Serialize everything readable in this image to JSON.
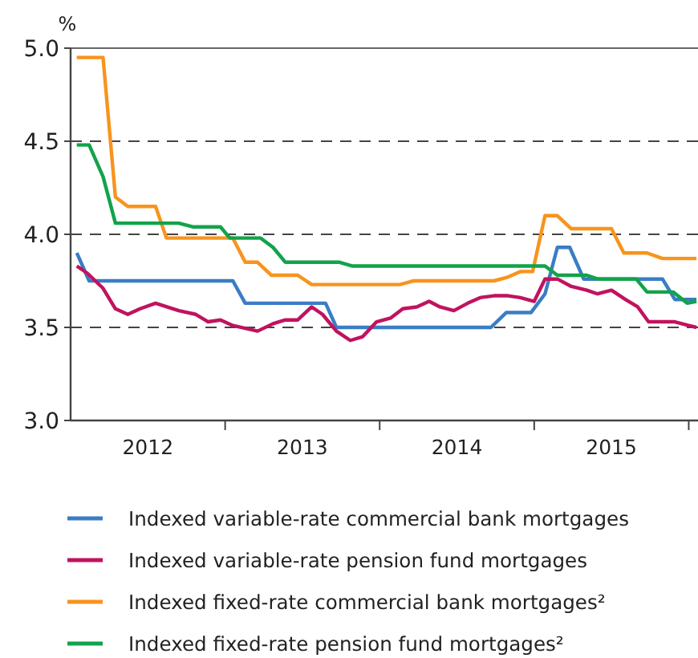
{
  "chart_data": {
    "type": "line",
    "ylabel": "%",
    "xlim": [
      2012,
      2016.06
    ],
    "ylim": [
      3,
      5
    ],
    "yticks": [
      {
        "value": 3,
        "label": "3.0"
      },
      {
        "value": 3.5,
        "label": "3.5"
      },
      {
        "value": 4,
        "label": "4.0"
      },
      {
        "value": 4.5,
        "label": "4.5"
      },
      {
        "value": 5,
        "label": "5.0"
      }
    ],
    "xticks": [
      {
        "value": 2013,
        "label": null
      },
      {
        "value": 2014,
        "label": null
      },
      {
        "value": 2015,
        "label": null
      },
      {
        "value": 2016,
        "label": null
      },
      {
        "value": 2012.5,
        "label": "2012"
      },
      {
        "value": 2013.5,
        "label": "2013"
      },
      {
        "value": 2014.5,
        "label": "2014"
      },
      {
        "value": 2015.5,
        "label": "2015"
      }
    ],
    "grid": "y",
    "legend": "bottom",
    "marker": "none",
    "line_style": "solid",
    "series": [
      {
        "name": "Indexed variable-rate commercial bank mortgages",
        "color": "#3a7dc4",
        "x": [
          2012.04,
          2012.12,
          2013.05,
          2013.13,
          2013.65,
          2013.72,
          2014.72,
          2014.82,
          2014.98,
          2015.07,
          2015.15,
          2015.23,
          2015.32,
          2015.83,
          2015.91,
          2016.05
        ],
        "values": [
          3.9,
          3.75,
          3.75,
          3.63,
          3.63,
          3.5,
          3.5,
          3.58,
          3.58,
          3.68,
          3.93,
          3.93,
          3.76,
          3.76,
          3.65,
          3.65
        ]
      },
      {
        "name": "Indexed variable-rate pension fund mortgages",
        "color": "#c0135f",
        "x": [
          2012.04,
          2012.11,
          2012.21,
          2012.29,
          2012.37,
          2012.45,
          2012.55,
          2012.7,
          2012.81,
          2012.89,
          2012.97,
          2013.05,
          2013.21,
          2013.31,
          2013.39,
          2013.47,
          2013.56,
          2013.63,
          2013.72,
          2013.81,
          2013.89,
          2013.98,
          2014.07,
          2014.15,
          2014.24,
          2014.32,
          2014.39,
          2014.48,
          2014.57,
          2014.65,
          2014.74,
          2014.83,
          2014.91,
          2015,
          2015.07,
          2015.15,
          2015.24,
          2015.34,
          2015.41,
          2015.5,
          2015.59,
          2015.67,
          2015.74,
          2015.83,
          2015.91,
          2016,
          2016.05
        ],
        "values": [
          3.83,
          3.79,
          3.71,
          3.6,
          3.57,
          3.6,
          3.63,
          3.59,
          3.57,
          3.53,
          3.54,
          3.51,
          3.48,
          3.52,
          3.54,
          3.54,
          3.61,
          3.57,
          3.48,
          3.43,
          3.45,
          3.53,
          3.55,
          3.6,
          3.61,
          3.64,
          3.61,
          3.59,
          3.63,
          3.66,
          3.67,
          3.67,
          3.66,
          3.64,
          3.76,
          3.76,
          3.72,
          3.7,
          3.68,
          3.7,
          3.65,
          3.61,
          3.53,
          3.53,
          3.53,
          3.51,
          3.5
        ]
      },
      {
        "name": "Indexed fixed-rate commercial bank mortgages²",
        "color": "#f7941d",
        "x": [
          2012.04,
          2012.21,
          2012.29,
          2012.37,
          2012.55,
          2012.62,
          2013.05,
          2013.13,
          2013.21,
          2013.3,
          2013.47,
          2013.56,
          2013.82,
          2014.13,
          2014.22,
          2014.74,
          2014.83,
          2014.91,
          2014.99,
          2015.07,
          2015.15,
          2015.24,
          2015.5,
          2015.58,
          2015.73,
          2015.83,
          2016.05
        ],
        "values": [
          4.95,
          4.95,
          4.2,
          4.15,
          4.15,
          3.98,
          3.98,
          3.85,
          3.85,
          3.78,
          3.78,
          3.73,
          3.73,
          3.73,
          3.75,
          3.75,
          3.77,
          3.8,
          3.8,
          4.1,
          4.1,
          4.03,
          4.03,
          3.9,
          3.9,
          3.87,
          3.87
        ]
      },
      {
        "name": "Indexed fixed-rate pension fund mortgages²",
        "color": "#12a34a",
        "x": [
          2012.04,
          2012.12,
          2012.21,
          2012.29,
          2012.7,
          2012.79,
          2012.97,
          2013.03,
          2013.23,
          2013.31,
          2013.39,
          2013.74,
          2013.82,
          2015.07,
          2015.15,
          2015.34,
          2015.41,
          2015.66,
          2015.73,
          2015.9,
          2015.99,
          2016.05
        ],
        "values": [
          4.48,
          4.48,
          4.31,
          4.06,
          4.06,
          4.04,
          4.04,
          3.98,
          3.98,
          3.93,
          3.85,
          3.85,
          3.83,
          3.83,
          3.78,
          3.78,
          3.76,
          3.76,
          3.69,
          3.69,
          3.63,
          3.64
        ]
      }
    ]
  }
}
